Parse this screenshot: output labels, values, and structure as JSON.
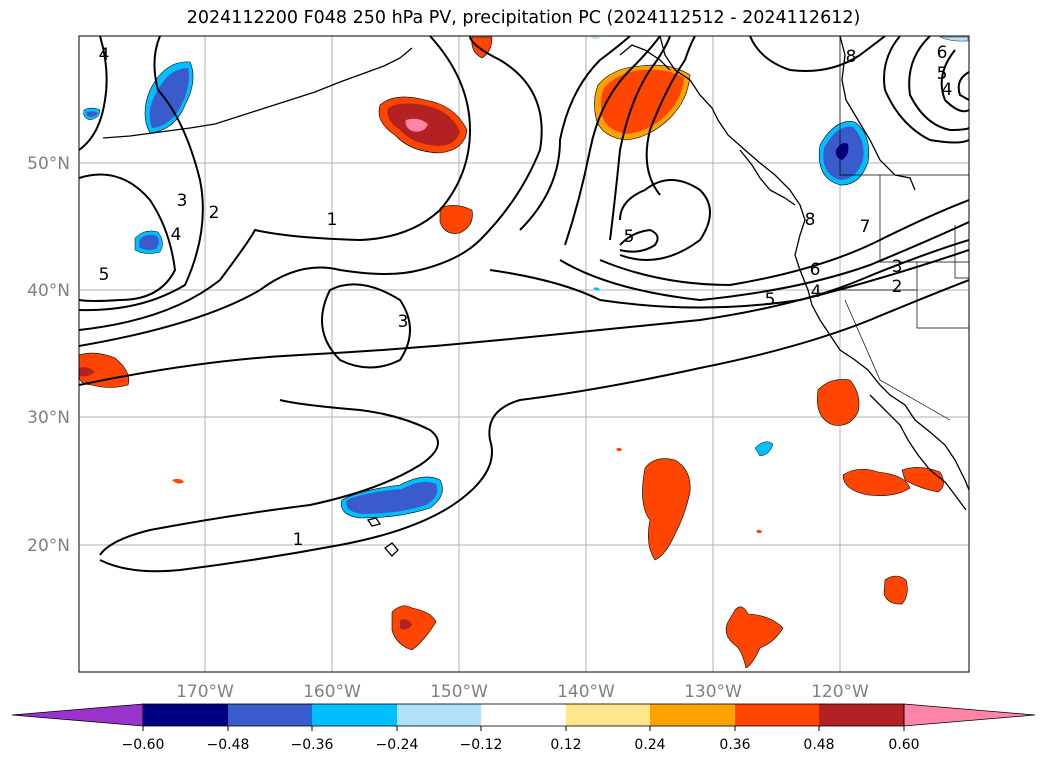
{
  "title": "2024112200 F048 250 hPa PV, precipitation PC (2024112512 - 2024112612)",
  "colors": {
    "land_outline": "#000000",
    "grid": "#b0b0b0",
    "label_gray": "#808080",
    "contour": "#000000"
  },
  "map": {
    "lon_labels": [
      "170°W",
      "160°W",
      "150°W",
      "140°W",
      "130°W",
      "120°W"
    ],
    "lat_labels": [
      "50°N",
      "40°N",
      "30°N",
      "20°N"
    ]
  },
  "contour_labels": [
    "4",
    "3",
    "2",
    "4",
    "5",
    "1",
    "3",
    "1",
    "8",
    "6",
    "5",
    "4",
    "5",
    "8",
    "7",
    "6",
    "5",
    "4",
    "3",
    "2"
  ],
  "colorbar": {
    "ticks": [
      "−0.60",
      "−0.48",
      "−0.36",
      "−0.24",
      "−0.12",
      "0.12",
      "0.24",
      "0.36",
      "0.48",
      "0.60"
    ],
    "colors": [
      "#9933cc",
      "#000080",
      "#3a5bcc",
      "#00bfff",
      "#b0e0fa",
      "#ffffff",
      "#ffe68c",
      "#ffa200",
      "#ff4500",
      "#b22222",
      "#ff85a8"
    ]
  }
}
